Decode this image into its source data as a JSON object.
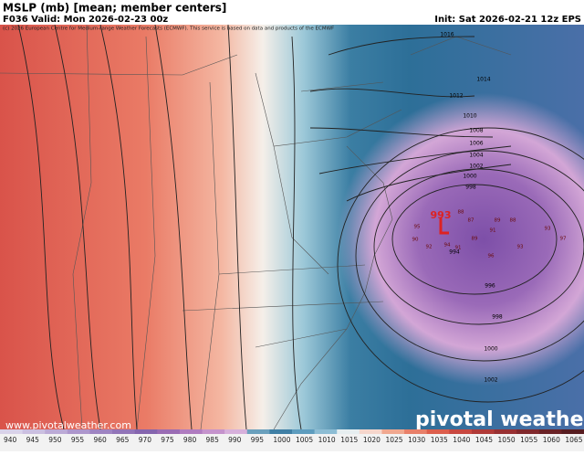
{
  "header": {
    "title": "MSLP (mb) [mean; member centers]",
    "valid": "F036 Valid: Mon 2026-02-23 00z",
    "init": "Init: Sat 2026-02-21 12z EPS",
    "credit": "(c) 2026 European Centre for Medium-range Weather Forecasts (ECMWF). This service is based on data and products of the ECMWF"
  },
  "low_center": 993,
  "contour_labels": [
    1016,
    1014,
    1012,
    1010,
    1008,
    1006,
    1004,
    1002,
    1000,
    998,
    994,
    996,
    998,
    1000,
    1002
  ],
  "member_centers": [
    88,
    87,
    89,
    88,
    91,
    93,
    97,
    93,
    96,
    89,
    91,
    90,
    92,
    94,
    95
  ],
  "colorbar": {
    "levels": [
      940,
      945,
      950,
      955,
      960,
      965,
      970,
      975,
      980,
      985,
      990,
      995,
      1000,
      1005,
      1010,
      1015,
      1020,
      1025,
      1030,
      1035,
      1040,
      1045,
      1050,
      1055,
      1060,
      1065
    ],
    "colors": [
      "#d9d2e9",
      "#cbbfe0",
      "#bcaad6",
      "#ad96cc",
      "#9f84c2",
      "#9274b8",
      "#8565ae",
      "#9a6cb4",
      "#b07cc0",
      "#c593cc",
      "#d7b0db",
      "#6aa0bd",
      "#3f7fa5",
      "#5d9cbe",
      "#8dbdd4",
      "#e6eef0",
      "#f5d6cc",
      "#f0a890",
      "#e8806a",
      "#dc5e4c",
      "#c84840",
      "#b03a38",
      "#983032",
      "#80282c",
      "#6a2226",
      "#561c20"
    ]
  },
  "watermark": {
    "url": "www.pivotalweather.com",
    "brand": "pivotal weather"
  }
}
